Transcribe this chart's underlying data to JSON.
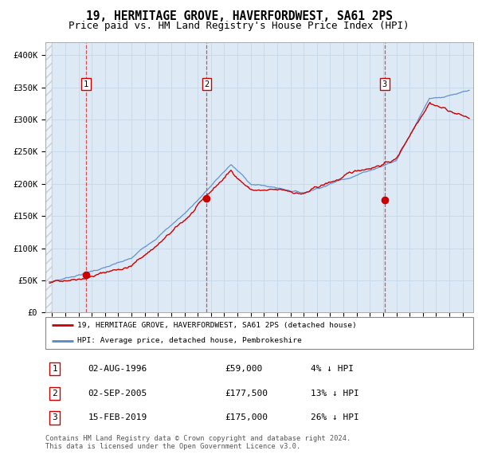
{
  "title": "19, HERMITAGE GROVE, HAVERFORDWEST, SA61 2PS",
  "subtitle": "Price paid vs. HM Land Registry's House Price Index (HPI)",
  "title_fontsize": 10.5,
  "subtitle_fontsize": 9,
  "ylim": [
    0,
    420000
  ],
  "yticks": [
    0,
    50000,
    100000,
    150000,
    200000,
    250000,
    300000,
    350000,
    400000
  ],
  "ytick_labels": [
    "£0",
    "£50K",
    "£100K",
    "£150K",
    "£200K",
    "£250K",
    "£300K",
    "£350K",
    "£400K"
  ],
  "xlim_start": 1993.5,
  "xlim_end": 2025.8,
  "sales": [
    {
      "num": 1,
      "date": "02-AUG-1996",
      "price": 59000,
      "year": 1996.58
    },
    {
      "num": 2,
      "date": "02-SEP-2005",
      "price": 177500,
      "year": 2005.67
    },
    {
      "num": 3,
      "date": "15-FEB-2019",
      "price": 175000,
      "year": 2019.12
    }
  ],
  "line_color_red": "#cc0000",
  "line_color_blue": "#5588cc",
  "marker_color_red": "#cc0000",
  "marker_box_color": "#cc0000",
  "grid_color": "#c8daea",
  "bg_color": "#ddeaf5",
  "legend_label_red": "19, HERMITAGE GROVE, HAVERFORDWEST, SA61 2PS (detached house)",
  "legend_label_blue": "HPI: Average price, detached house, Pembrokeshire",
  "table_rows": [
    {
      "num": 1,
      "date": "02-AUG-1996",
      "price": "£59,000",
      "pct": "4% ↓ HPI"
    },
    {
      "num": 2,
      "date": "02-SEP-2005",
      "price": "£177,500",
      "pct": "13% ↓ HPI"
    },
    {
      "num": 3,
      "date": "15-FEB-2019",
      "price": "£175,000",
      "pct": "26% ↓ HPI"
    }
  ],
  "footer": "Contains HM Land Registry data © Crown copyright and database right 2024.\nThis data is licensed under the Open Government Licence v3.0.",
  "dashed_line_color": "#dd3333",
  "hatch_end_year": 1994.0
}
